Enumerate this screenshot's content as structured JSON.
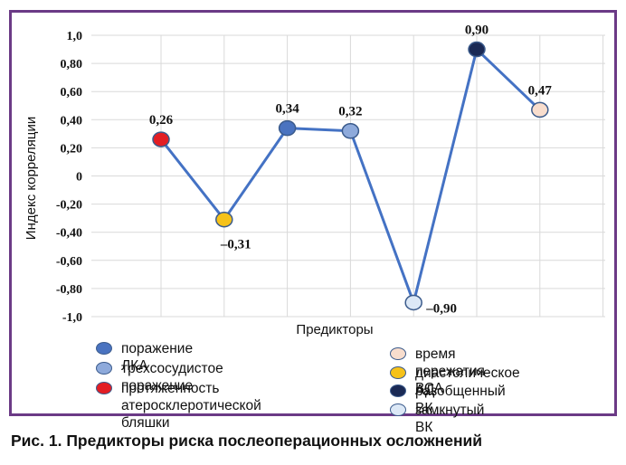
{
  "chart_data": {
    "type": "line",
    "xlabel": "Предикторы",
    "ylabel": "Индекс корреляции",
    "ylim": [
      -1.0,
      1.0
    ],
    "y_ticks": [
      "1,0",
      "0,80",
      "0,60",
      "0,40",
      "0,20",
      "0",
      "-0,20",
      "-0,40",
      "-0,60",
      "-0,80",
      "-1,0"
    ],
    "y_tick_values": [
      1.0,
      0.8,
      0.6,
      0.4,
      0.2,
      0,
      -0.2,
      -0.4,
      -0.6,
      -0.8,
      -1.0
    ],
    "grid": true,
    "line_color": "#4472c4",
    "points": [
      {
        "category": "протяженность атеросклеротической бляшки",
        "value": 0.26,
        "label": "0,26",
        "color": "#e31e24"
      },
      {
        "category": "диастолическое АД",
        "value": -0.31,
        "label": "–0,31",
        "color": "#f6c21a"
      },
      {
        "category": "поражение ЛКА",
        "value": 0.34,
        "label": "0,34",
        "color": "#4a73c0"
      },
      {
        "category": "трехсосудистое поражение",
        "value": 0.32,
        "label": "0,32",
        "color": "#8eaadb"
      },
      {
        "category": "замкнутый ВК",
        "value": -0.9,
        "label": "–0,90",
        "color": "#dce8f6"
      },
      {
        "category": "разобщенный ВК",
        "value": 0.9,
        "label": "0,90",
        "color": "#1b2a55"
      },
      {
        "category": "время пережатия ВСА",
        "value": 0.47,
        "label": "0,47",
        "color": "#f8ddcd"
      }
    ],
    "legend_position": "bottom",
    "legend": {
      "left": [
        {
          "label": "поражение ЛКА",
          "color": "#4a73c0"
        },
        {
          "label": "трехсосудистое поражение",
          "color": "#8eaadb"
        },
        {
          "label": "протяженность\nатеросклеротической бляшки",
          "color": "#e31e24"
        }
      ],
      "right": [
        {
          "label": "время пережатия ВСА",
          "color": "#f8ddcd"
        },
        {
          "label": "диастолическое АД",
          "color": "#f6c21a"
        },
        {
          "label": "разобщенный ВК",
          "color": "#1b2a55"
        },
        {
          "label": "замкнутый ВК",
          "color": "#dce8f6"
        }
      ]
    }
  },
  "caption": "Рис. 1. Предикторы риска послеоперационных осложнений",
  "colors": {
    "frame": "#6b3a86",
    "grid": "#d9d9d9",
    "marker_stroke": "#3b5b8c"
  }
}
